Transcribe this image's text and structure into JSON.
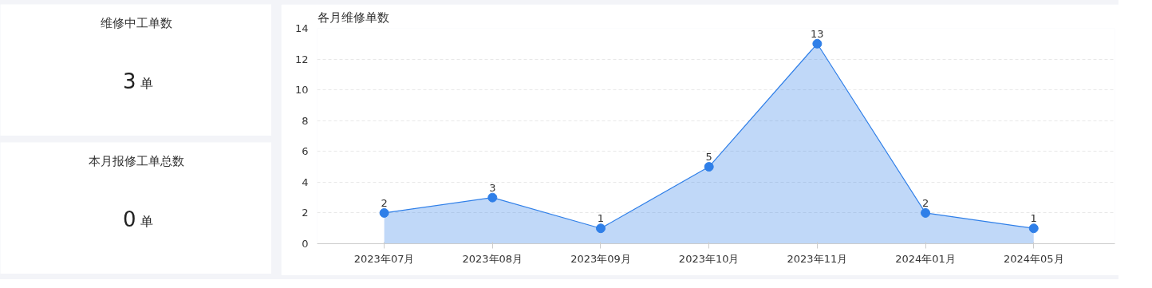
{
  "chart_data": [
    {
      "type": "other",
      "title": "维修中工单数",
      "annotations": [
        "3",
        "单"
      ]
    },
    {
      "type": "other",
      "title": "本月报修工单总数",
      "annotations": [
        "0",
        "单"
      ]
    },
    {
      "type": "area",
      "title": "各月维修单数",
      "categories": [
        "2023年07月",
        "2023年08月",
        "2023年09月",
        "2023年10月",
        "2023年11月",
        "2024年01月",
        "2024年05月"
      ],
      "values": [
        2,
        3,
        1,
        5,
        13,
        2,
        1
      ],
      "color": "#2f7fe8",
      "ylim": [
        0,
        14
      ],
      "yticks": [
        0,
        2,
        4,
        6,
        8,
        10,
        12,
        14
      ],
      "grid": "y",
      "data_labels": true,
      "marker": "circle"
    }
  ]
}
